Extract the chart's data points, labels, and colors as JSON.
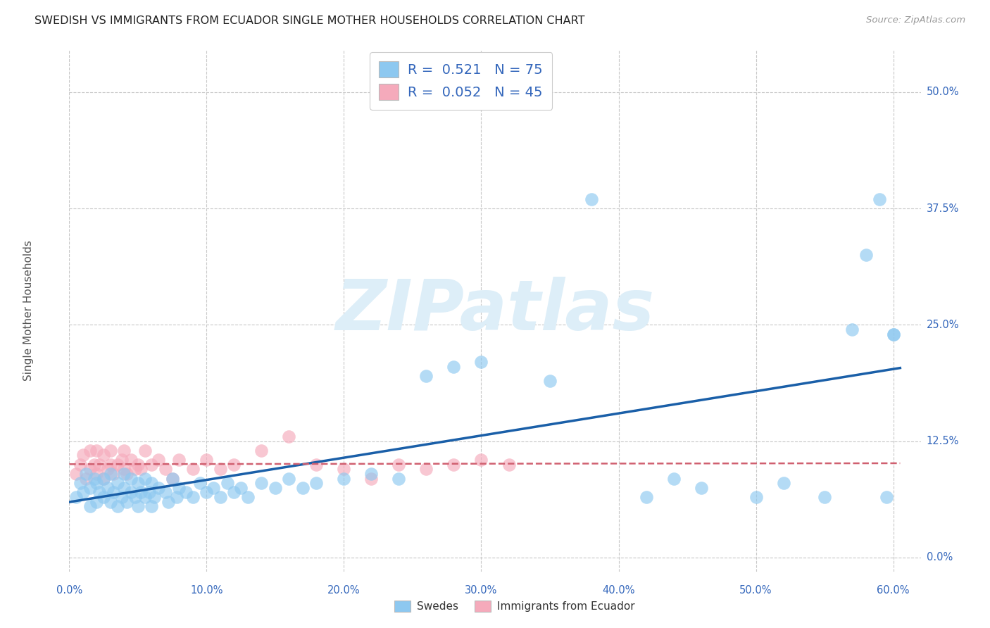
{
  "title": "SWEDISH VS IMMIGRANTS FROM ECUADOR SINGLE MOTHER HOUSEHOLDS CORRELATION CHART",
  "source": "Source: ZipAtlas.com",
  "xlabel_ticks": [
    "0.0%",
    "10.0%",
    "20.0%",
    "30.0%",
    "40.0%",
    "50.0%",
    "60.0%"
  ],
  "xlabel_vals": [
    0.0,
    0.1,
    0.2,
    0.3,
    0.4,
    0.5,
    0.6
  ],
  "ylabel_ticks": [
    "0.0%",
    "12.5%",
    "25.0%",
    "37.5%",
    "50.0%"
  ],
  "ylabel_vals": [
    0.0,
    0.125,
    0.25,
    0.375,
    0.5
  ],
  "ylabel_label": "Single Mother Households",
  "swedes_R": 0.521,
  "swedes_N": 75,
  "ecuador_R": 0.052,
  "ecuador_N": 45,
  "swedes_color": "#8DC8F0",
  "ecuador_color": "#F5AABB",
  "swedes_line_color": "#1A5FA8",
  "ecuador_line_color": "#D06070",
  "background_color": "#FFFFFF",
  "watermark_text": "ZIPatlas",
  "watermark_color": "#DDEEF8",
  "xmin": 0.0,
  "xmax": 0.62,
  "ymin": -0.015,
  "ymax": 0.545,
  "swedes_x": [
    0.005,
    0.008,
    0.01,
    0.012,
    0.015,
    0.015,
    0.018,
    0.02,
    0.02,
    0.022,
    0.025,
    0.025,
    0.028,
    0.03,
    0.03,
    0.032,
    0.035,
    0.035,
    0.038,
    0.04,
    0.04,
    0.042,
    0.045,
    0.045,
    0.048,
    0.05,
    0.05,
    0.052,
    0.055,
    0.055,
    0.058,
    0.06,
    0.06,
    0.062,
    0.065,
    0.07,
    0.072,
    0.075,
    0.078,
    0.08,
    0.085,
    0.09,
    0.095,
    0.1,
    0.105,
    0.11,
    0.115,
    0.12,
    0.125,
    0.13,
    0.14,
    0.15,
    0.16,
    0.17,
    0.18,
    0.2,
    0.22,
    0.24,
    0.26,
    0.28,
    0.3,
    0.35,
    0.38,
    0.42,
    0.44,
    0.46,
    0.5,
    0.52,
    0.55,
    0.57,
    0.58,
    0.59,
    0.595,
    0.6,
    0.6
  ],
  "swedes_y": [
    0.065,
    0.08,
    0.07,
    0.09,
    0.055,
    0.075,
    0.085,
    0.06,
    0.08,
    0.07,
    0.065,
    0.085,
    0.075,
    0.06,
    0.09,
    0.07,
    0.055,
    0.08,
    0.065,
    0.075,
    0.09,
    0.06,
    0.07,
    0.085,
    0.065,
    0.055,
    0.08,
    0.07,
    0.065,
    0.085,
    0.07,
    0.055,
    0.08,
    0.065,
    0.075,
    0.07,
    0.06,
    0.085,
    0.065,
    0.075,
    0.07,
    0.065,
    0.08,
    0.07,
    0.075,
    0.065,
    0.08,
    0.07,
    0.075,
    0.065,
    0.08,
    0.075,
    0.085,
    0.075,
    0.08,
    0.085,
    0.09,
    0.085,
    0.195,
    0.205,
    0.21,
    0.19,
    0.385,
    0.065,
    0.085,
    0.075,
    0.065,
    0.08,
    0.065,
    0.245,
    0.325,
    0.385,
    0.065,
    0.24,
    0.24
  ],
  "ecuador_x": [
    0.005,
    0.008,
    0.01,
    0.012,
    0.015,
    0.015,
    0.018,
    0.02,
    0.02,
    0.022,
    0.025,
    0.025,
    0.028,
    0.03,
    0.03,
    0.032,
    0.035,
    0.038,
    0.04,
    0.04,
    0.042,
    0.045,
    0.048,
    0.05,
    0.052,
    0.055,
    0.06,
    0.065,
    0.07,
    0.075,
    0.08,
    0.09,
    0.1,
    0.11,
    0.12,
    0.14,
    0.16,
    0.18,
    0.2,
    0.22,
    0.24,
    0.26,
    0.28,
    0.3,
    0.32
  ],
  "ecuador_y": [
    0.09,
    0.1,
    0.11,
    0.085,
    0.095,
    0.115,
    0.1,
    0.09,
    0.115,
    0.1,
    0.085,
    0.11,
    0.095,
    0.1,
    0.115,
    0.09,
    0.1,
    0.105,
    0.095,
    0.115,
    0.09,
    0.105,
    0.095,
    0.1,
    0.095,
    0.115,
    0.1,
    0.105,
    0.095,
    0.085,
    0.105,
    0.095,
    0.105,
    0.095,
    0.1,
    0.115,
    0.13,
    0.1,
    0.095,
    0.085,
    0.1,
    0.095,
    0.1,
    0.105,
    0.1
  ]
}
